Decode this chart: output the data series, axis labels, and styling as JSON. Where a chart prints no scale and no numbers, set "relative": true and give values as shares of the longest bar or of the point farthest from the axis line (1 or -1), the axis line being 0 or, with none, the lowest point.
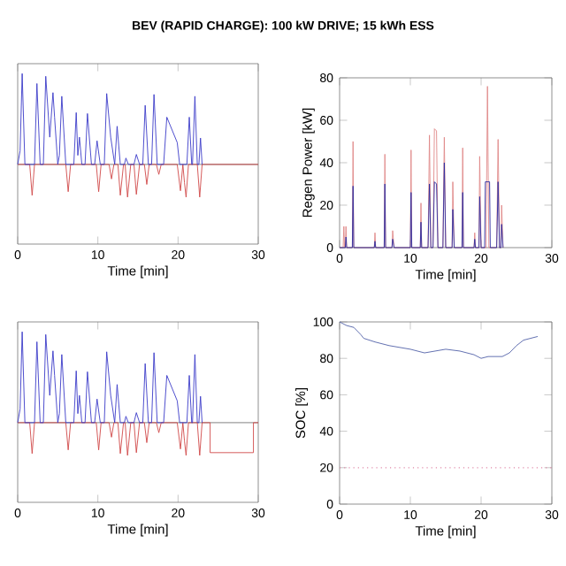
{
  "chart_data": [
    {
      "type": "line",
      "title": "BEV (RAPID CHARGE): 100 kW DRIVE; 15 kWh ESS",
      "xlabel": "Time [min]",
      "relative": true,
      "xlim": [
        0,
        30
      ],
      "xticks": [
        0,
        10,
        20,
        30
      ],
      "tick_labels": "x",
      "series": [
        {
          "color": "#d04848",
          "x": [
            0,
            1.5,
            1.8,
            2.1,
            6.0,
            6.3,
            6.6,
            9.8,
            10.1,
            10.4,
            11.4,
            11.7,
            12.0,
            12.5,
            12.8,
            13.2,
            13.4,
            13.7,
            14.1,
            14.5,
            14.8,
            15.2,
            15.8,
            16.1,
            16.4,
            17.3,
            17.6,
            17.9,
            19.9,
            20.3,
            20.6,
            20.8,
            21.0,
            21.3,
            22.4,
            22.7,
            23.0,
            30
          ],
          "values": [
            0,
            0,
            -0.34,
            0,
            0,
            -0.3,
            0,
            0,
            -0.3,
            0,
            0,
            -0.16,
            0,
            0,
            -0.34,
            0,
            0,
            -0.36,
            0,
            0,
            -0.33,
            0,
            0,
            -0.22,
            0,
            0,
            -0.11,
            0,
            0,
            -0.29,
            0,
            -0.2,
            -0.36,
            0,
            0,
            -0.36,
            0,
            0
          ]
        },
        {
          "color": "#3a3ac8",
          "x": [
            0,
            0.3,
            0.56,
            0.9,
            2.1,
            2.4,
            2.8,
            3.2,
            3.5,
            4.0,
            4.4,
            4.6,
            5.0,
            5.2,
            5.5,
            6.0,
            7.0,
            7.3,
            7.5,
            7.7,
            8.0,
            8.4,
            8.7,
            9.2,
            9.6,
            9.9,
            10.3,
            10.8,
            11.1,
            11.6,
            12.1,
            12.4,
            12.8,
            13.3,
            13.5,
            13.8,
            14.5,
            14.8,
            15.2,
            15.6,
            15.9,
            16.3,
            16.7,
            17.0,
            17.4,
            18.2,
            18.6,
            19.9,
            20.2,
            21.1,
            21.4,
            21.7,
            21.8,
            22.1,
            22.4,
            22.6,
            22.8,
            23.0
          ],
          "values": [
            0,
            0.15,
            1.0,
            0,
            0,
            0.89,
            0,
            0,
            0.97,
            0.3,
            0.79,
            0.52,
            0,
            0.1,
            0.75,
            0,
            0,
            0.57,
            0.1,
            0.3,
            0,
            0,
            0.56,
            0,
            0,
            0.26,
            0,
            0,
            0.78,
            0.3,
            0,
            0.42,
            0,
            0,
            0.07,
            0,
            0,
            0.11,
            0,
            0,
            0.65,
            0,
            0,
            0.77,
            0,
            0,
            0.52,
            0.24,
            0,
            0,
            0.52,
            0,
            0,
            0.75,
            0,
            0,
            0.29,
            0
          ]
        }
      ]
    },
    {
      "type": "line",
      "xlabel": "Time [min]",
      "ylabel": "Regen Power [kW]",
      "xlim": [
        0,
        30
      ],
      "xticks": [
        0,
        10,
        20,
        30
      ],
      "ylim": [
        0,
        80
      ],
      "yticks": [
        0,
        20,
        40,
        60,
        80
      ],
      "series": [
        {
          "color": "#e08888",
          "x": [
            0,
            0.5,
            0.6,
            0.7,
            0.8,
            0.9,
            1.0,
            1.8,
            1.9,
            2.0,
            4.9,
            5.0,
            5.1,
            6.3,
            6.4,
            6.5,
            7.4,
            7.5,
            7.7,
            10.0,
            10.1,
            10.2,
            11.4,
            11.5,
            11.6,
            12.5,
            12.7,
            12.9,
            13.2,
            13.4,
            13.7,
            13.9,
            14.6,
            14.8,
            15.0,
            15.9,
            16.0,
            16.2,
            17.3,
            17.4,
            17.5,
            19.0,
            19.1,
            19.2,
            19.7,
            19.8,
            20.0,
            20.7,
            20.9,
            21.1,
            22.2,
            22.4,
            22.6,
            22.8,
            22.9,
            23.1
          ],
          "values": [
            0,
            0,
            10,
            0,
            0,
            10,
            0,
            0,
            50,
            0,
            0,
            7,
            0,
            0,
            44,
            0,
            0,
            8,
            0,
            0,
            46,
            0,
            0,
            21,
            0,
            0,
            53,
            0,
            0,
            56,
            55,
            0,
            0,
            52,
            0,
            0,
            31,
            0,
            0,
            47,
            0,
            0,
            7,
            0,
            0,
            43,
            0,
            0,
            76,
            0,
            0,
            51,
            0,
            0,
            20,
            0
          ]
        },
        {
          "color": "#2a2aa0",
          "x": [
            0,
            0.8,
            0.9,
            1.0,
            1.8,
            1.9,
            2.0,
            4.9,
            5.0,
            5.1,
            6.3,
            6.4,
            6.5,
            7.4,
            7.5,
            7.7,
            10.0,
            10.1,
            10.2,
            11.4,
            11.5,
            11.6,
            12.5,
            12.7,
            12.9,
            13.2,
            13.4,
            13.7,
            13.9,
            14.6,
            14.8,
            15.0,
            15.9,
            16.0,
            16.2,
            17.3,
            17.4,
            17.5,
            19.0,
            19.1,
            19.2,
            19.7,
            19.8,
            20.0,
            20.5,
            20.6,
            21.2,
            21.3,
            22.2,
            22.4,
            22.6,
            22.8,
            22.9,
            23.1
          ],
          "values": [
            0,
            0,
            5,
            0,
            0,
            29,
            0,
            0,
            3,
            0,
            0,
            30,
            0,
            0,
            4,
            0,
            0,
            26,
            0,
            0,
            12,
            0,
            0,
            30,
            0,
            0,
            31,
            30,
            0,
            0,
            40,
            0,
            0,
            18,
            0,
            0,
            26,
            0,
            0,
            4,
            0,
            0,
            24,
            0,
            0,
            31,
            31,
            0,
            0,
            31,
            0,
            0,
            11,
            0
          ]
        }
      ]
    },
    {
      "type": "line",
      "xlabel": "Time [min]",
      "relative": true,
      "xlim": [
        0,
        30
      ],
      "xticks": [
        0,
        10,
        20,
        30
      ],
      "tick_labels": "x",
      "series": [
        {
          "color": "#d04848",
          "x": [
            0,
            1.5,
            1.8,
            2.1,
            6.0,
            6.3,
            6.6,
            9.8,
            10.1,
            10.4,
            11.4,
            11.7,
            12.0,
            12.5,
            12.8,
            13.2,
            13.4,
            13.7,
            14.1,
            14.5,
            14.8,
            15.2,
            15.8,
            16.1,
            16.4,
            17.3,
            17.6,
            17.9,
            19.9,
            20.3,
            20.6,
            20.8,
            21.0,
            21.3,
            22.4,
            22.7,
            23.0,
            24,
            24,
            29.4,
            29.4,
            30
          ],
          "values": [
            0,
            0,
            -0.34,
            0,
            0,
            -0.3,
            0,
            0,
            -0.3,
            0,
            0,
            -0.16,
            0,
            0,
            -0.34,
            0,
            0,
            -0.36,
            0,
            0,
            -0.33,
            0,
            0,
            -0.22,
            0,
            0,
            -0.11,
            0,
            0,
            -0.29,
            0,
            -0.2,
            -0.36,
            0,
            0,
            -0.36,
            0,
            0,
            -0.33,
            -0.33,
            0,
            0
          ]
        },
        {
          "color": "#3a3ac8",
          "x": [
            0,
            0.3,
            0.56,
            0.9,
            2.1,
            2.4,
            2.8,
            3.2,
            3.5,
            4.0,
            4.4,
            4.6,
            5.0,
            5.2,
            5.5,
            6.0,
            7.0,
            7.3,
            7.5,
            7.7,
            8.0,
            8.4,
            8.7,
            9.2,
            9.6,
            9.9,
            10.3,
            10.8,
            11.1,
            11.6,
            12.1,
            12.4,
            12.8,
            13.3,
            13.5,
            13.8,
            14.5,
            14.8,
            15.2,
            15.6,
            15.9,
            16.3,
            16.7,
            17.0,
            17.4,
            18.2,
            18.6,
            19.9,
            20.2,
            21.1,
            21.4,
            21.7,
            21.8,
            22.1,
            22.4,
            22.6,
            22.8,
            23.0
          ],
          "values": [
            0,
            0.15,
            1.0,
            0,
            0,
            0.89,
            0,
            0,
            0.97,
            0.3,
            0.79,
            0.52,
            0,
            0.1,
            0.75,
            0,
            0,
            0.57,
            0.1,
            0.3,
            0,
            0,
            0.56,
            0,
            0,
            0.26,
            0,
            0,
            0.78,
            0.3,
            0,
            0.42,
            0,
            0,
            0.07,
            0,
            0,
            0.11,
            0,
            0,
            0.65,
            0,
            0,
            0.77,
            0,
            0,
            0.52,
            0.24,
            0,
            0,
            0.52,
            0,
            0,
            0.75,
            0,
            0,
            0.29,
            0
          ]
        }
      ]
    },
    {
      "type": "line",
      "xlabel": "Time [min]",
      "ylabel": "SOC [%]",
      "xlim": [
        0,
        30
      ],
      "xticks": [
        0,
        10,
        20,
        30
      ],
      "ylim": [
        0,
        100
      ],
      "yticks": [
        0,
        20,
        40,
        60,
        80,
        100
      ],
      "series": [
        {
          "color": "#5060a8",
          "x": [
            0,
            1,
            2,
            3,
            3.4,
            5,
            7,
            10,
            12,
            15,
            17,
            19,
            20,
            21,
            22,
            23,
            24,
            25,
            26,
            27,
            28
          ],
          "values": [
            100,
            98,
            97,
            93,
            91,
            89,
            87,
            85,
            83,
            85,
            84,
            82,
            80,
            81,
            81,
            81,
            83,
            87,
            90,
            91,
            92
          ]
        }
      ],
      "ref_lines": [
        {
          "axis": "y",
          "value": 20,
          "color": "#e088a8",
          "line_style": "dotted"
        }
      ]
    }
  ]
}
